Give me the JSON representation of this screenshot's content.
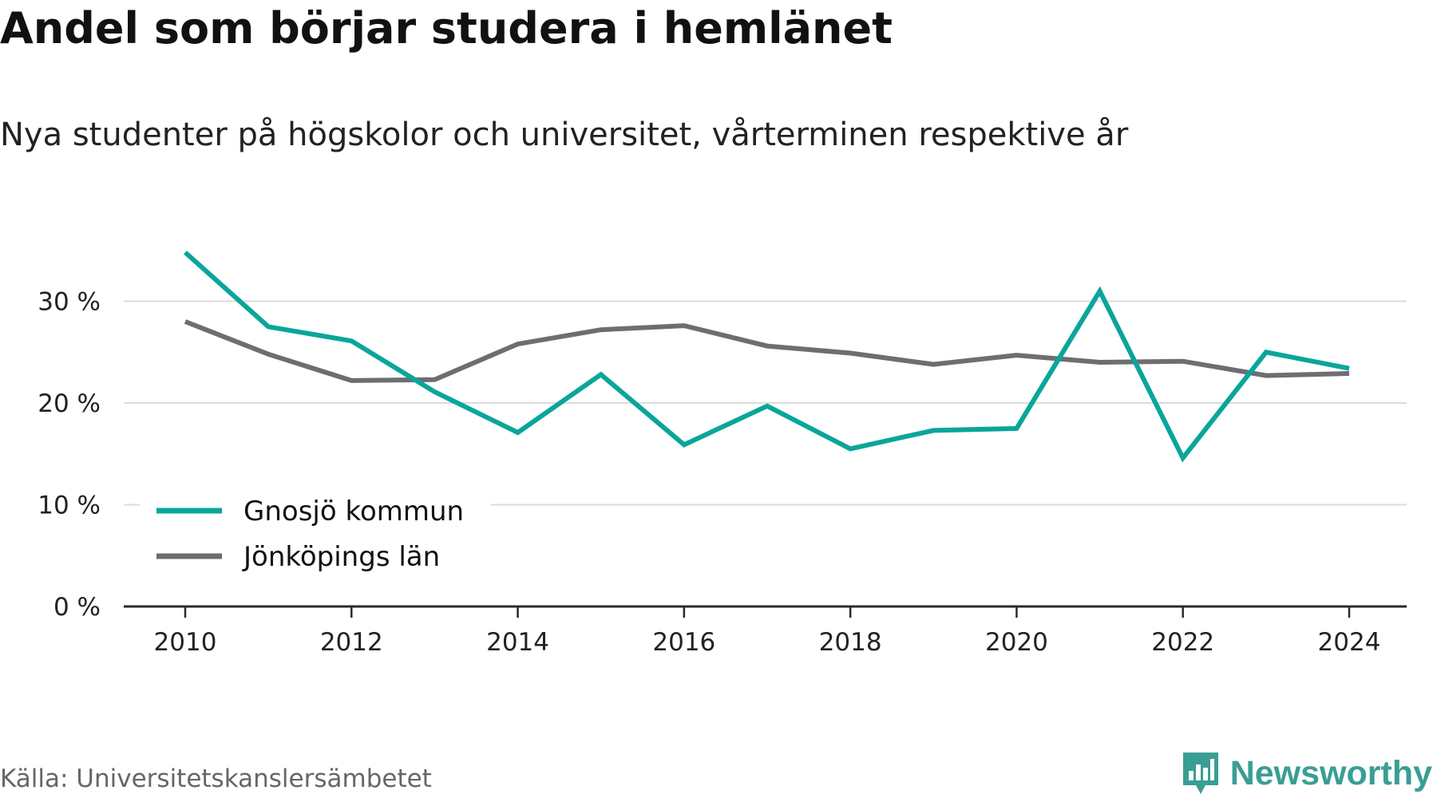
{
  "title": "Andel som börjar studera i hemlänet",
  "subtitle": "Nya studenter på högskolor och universitet, vårterminen respektive år",
  "source": "Källa: Universitetskanslersämbetet",
  "brand": {
    "name": "Newsworthy",
    "icon": "bar-chart-badge-icon",
    "color": "#3a9e94"
  },
  "chart_data": {
    "type": "line",
    "title": "Andel som börjar studera i hemlänet",
    "subtitle": "Nya studenter på högskolor och universitet, vårterminen respektive år",
    "xlabel": "",
    "ylabel": "",
    "x": [
      2010,
      2011,
      2012,
      2013,
      2014,
      2015,
      2016,
      2017,
      2018,
      2019,
      2020,
      2021,
      2022,
      2023,
      2024
    ],
    "x_ticks": [
      "2010",
      "2012",
      "2014",
      "2016",
      "2018",
      "2020",
      "2022",
      "2024"
    ],
    "y_ticks": [
      "0 %",
      "10 %",
      "20 %",
      "30 %"
    ],
    "y_tick_values": [
      0,
      10,
      20,
      30
    ],
    "ylim": [
      0,
      36
    ],
    "grid": true,
    "legend_position": "bottom-left",
    "series": [
      {
        "name": "Gnosjö kommun",
        "color": "#0aa59b",
        "values": [
          34.8,
          27.5,
          26.1,
          21.1,
          17.1,
          22.8,
          15.9,
          19.7,
          15.5,
          17.3,
          17.5,
          31.0,
          14.6,
          25.0,
          23.4
        ]
      },
      {
        "name": "Jönköpings län",
        "color": "#6e6d72",
        "values": [
          28.0,
          24.8,
          22.2,
          22.3,
          25.8,
          27.2,
          27.6,
          25.6,
          24.9,
          23.8,
          24.7,
          24.0,
          24.1,
          22.7,
          22.9
        ]
      }
    ]
  }
}
